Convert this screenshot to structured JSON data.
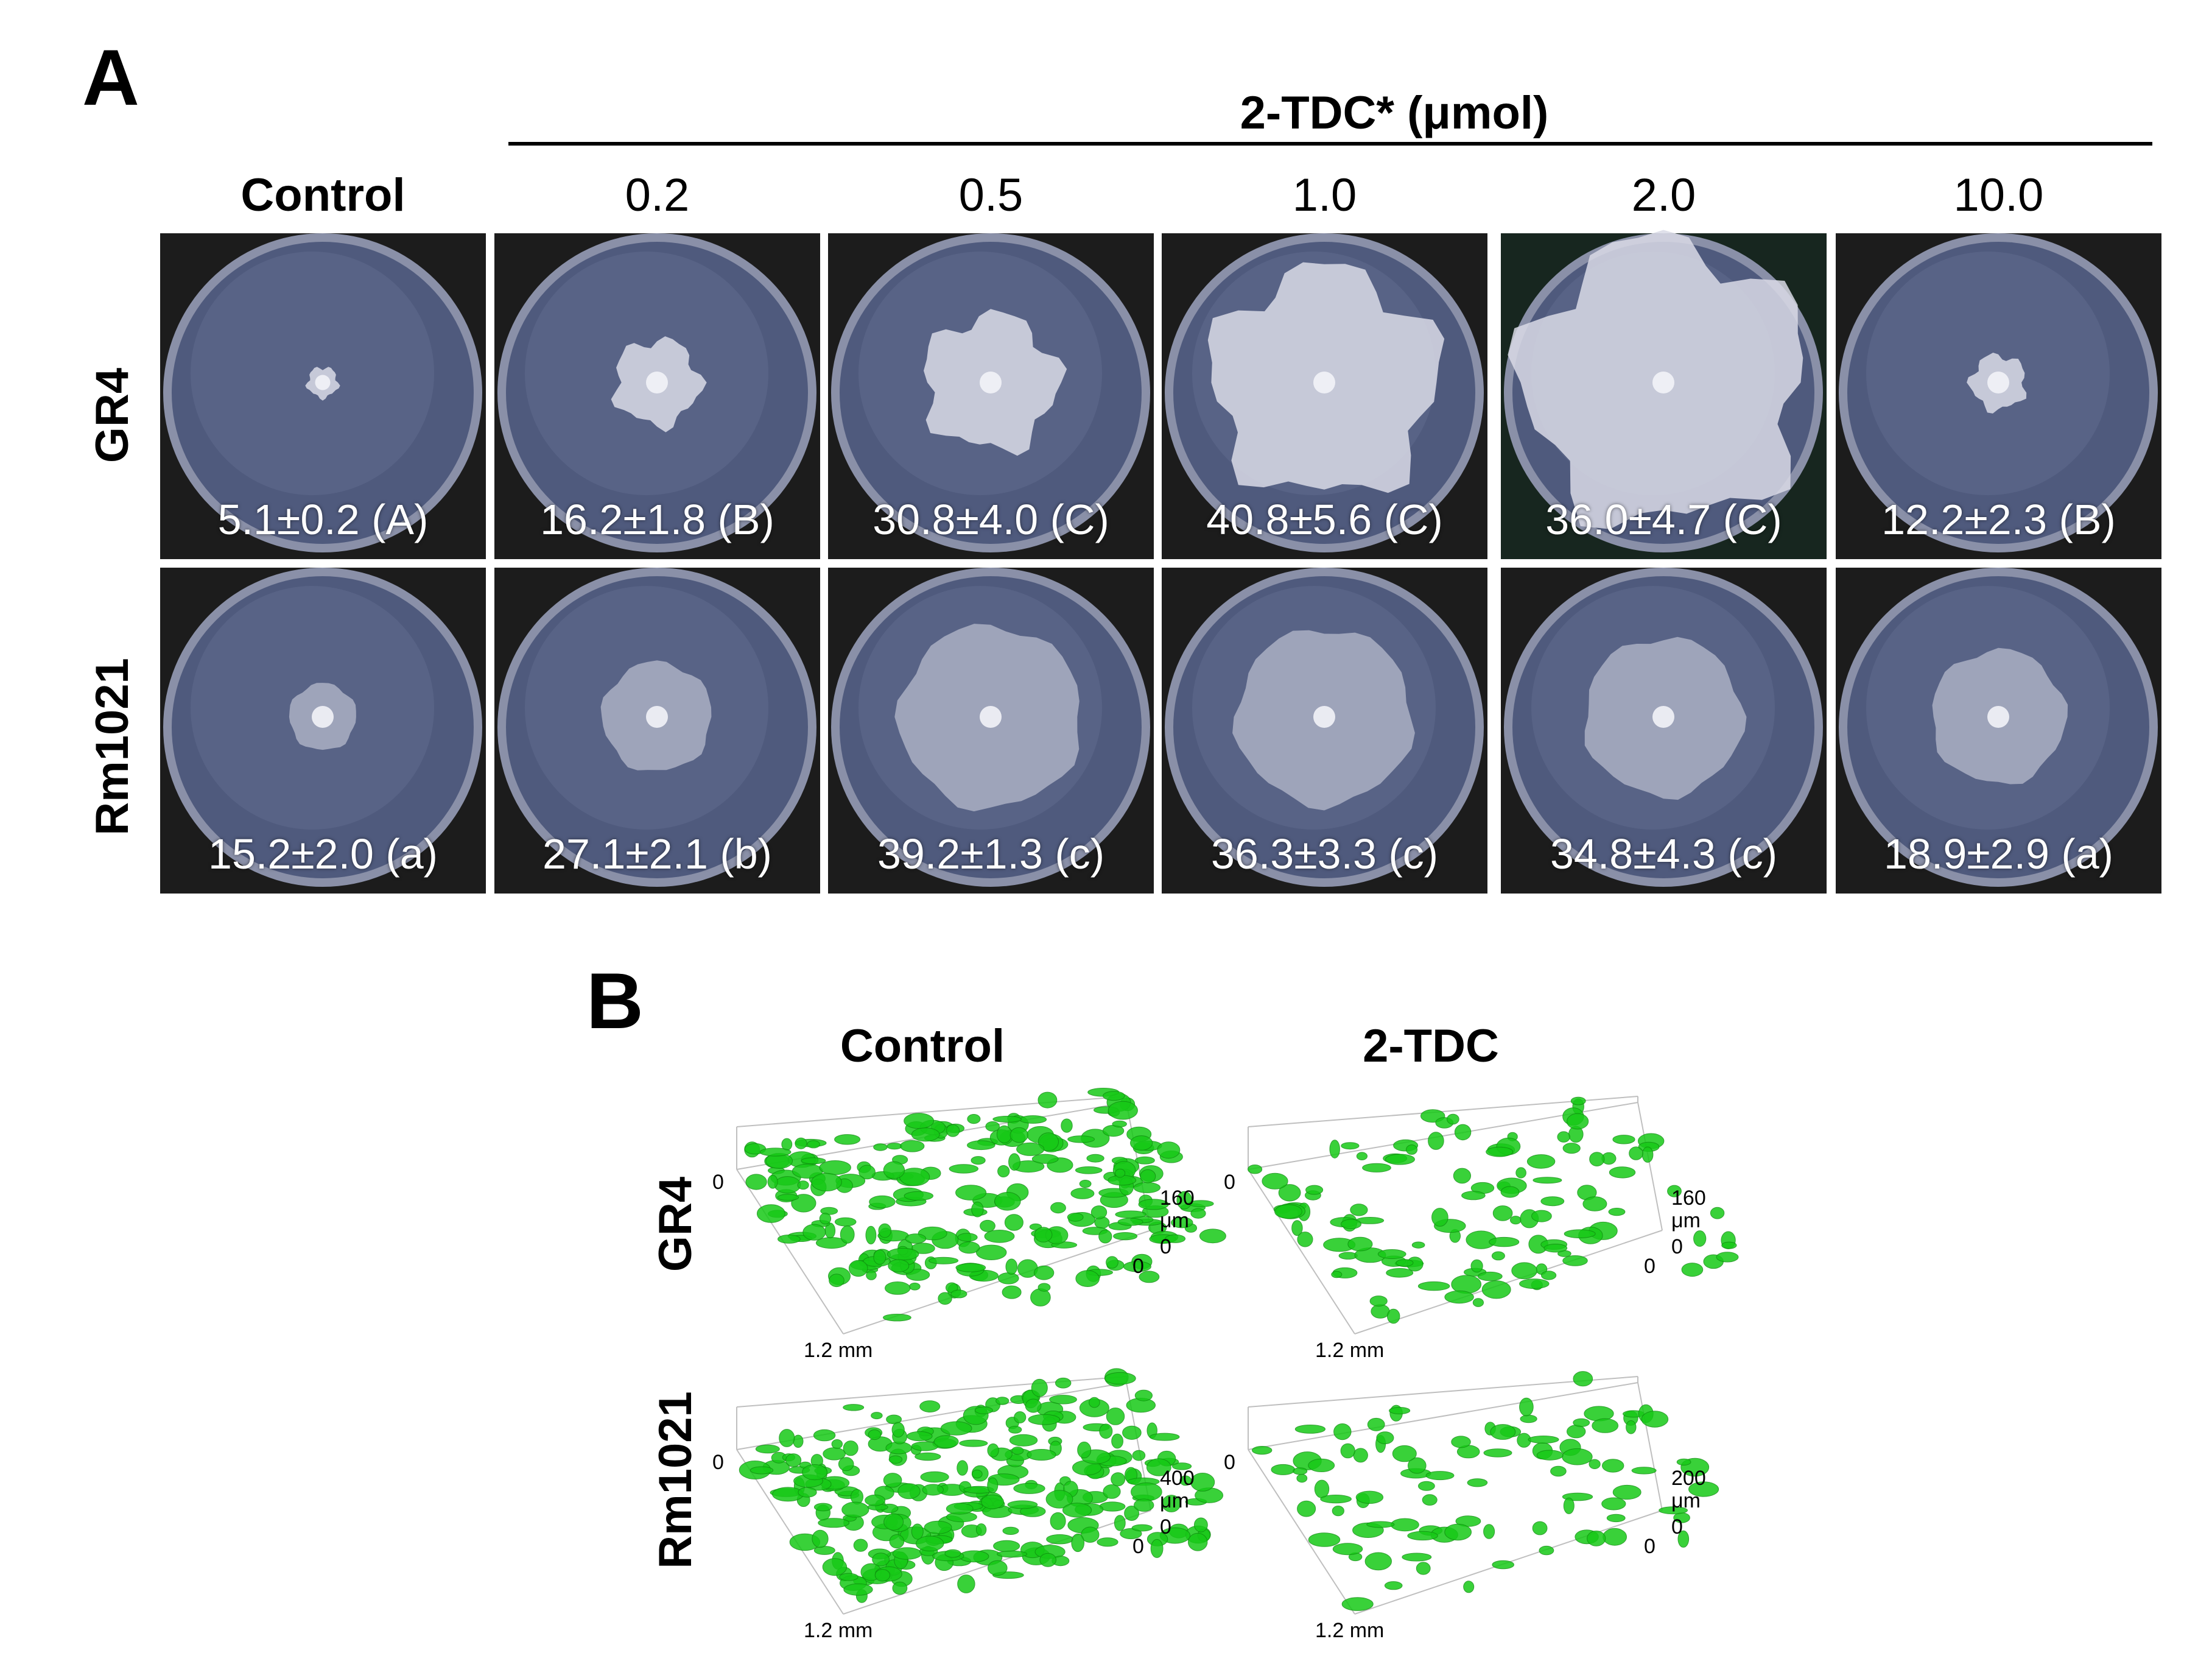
{
  "panelA": {
    "letter": "A",
    "treatment_header": "2-TDC* (μmol)",
    "columns": [
      "Control",
      "0.2",
      "0.5",
      "1.0",
      "2.0",
      "10.0"
    ],
    "rows": [
      {
        "strain": "GR4",
        "values": [
          "5.1±0.2 (A)",
          "16.2±1.8 (B)",
          "30.8±4.0 (C)",
          "40.8±5.6 (C)",
          "36.0±4.7 (C)",
          "12.2±2.3 (B)"
        ]
      },
      {
        "strain": "Rm1021",
        "values": [
          "15.2±2.0 (a)",
          "27.1±2.1 (b)",
          "39.2±1.3 (c)",
          "36.3±3.3 (c)",
          "34.8±4.3 (c)",
          "18.9±2.9 (a)"
        ]
      }
    ]
  },
  "panelB": {
    "letter": "B",
    "columns": [
      "Control",
      "2-TDC"
    ],
    "rows": [
      "GR4",
      "Rm1021"
    ],
    "plots": [
      {
        "z_top": "160",
        "unit": "μm",
        "zero": "0",
        "length": "1.2 mm"
      },
      {
        "z_top": "160",
        "unit": "μm",
        "zero": "0",
        "length": "1.2 mm"
      },
      {
        "z_top": "400",
        "unit": "μm",
        "zero": "0",
        "length": "1.2 mm"
      },
      {
        "z_top": "200",
        "unit": "μm",
        "zero": "0",
        "length": "1.2 mm"
      }
    ]
  },
  "colors": {
    "plate_bg": "#1c1c1c",
    "agar": "#4f5a7d",
    "colony": "#d9dbe6",
    "biofilm": "#17c917"
  }
}
